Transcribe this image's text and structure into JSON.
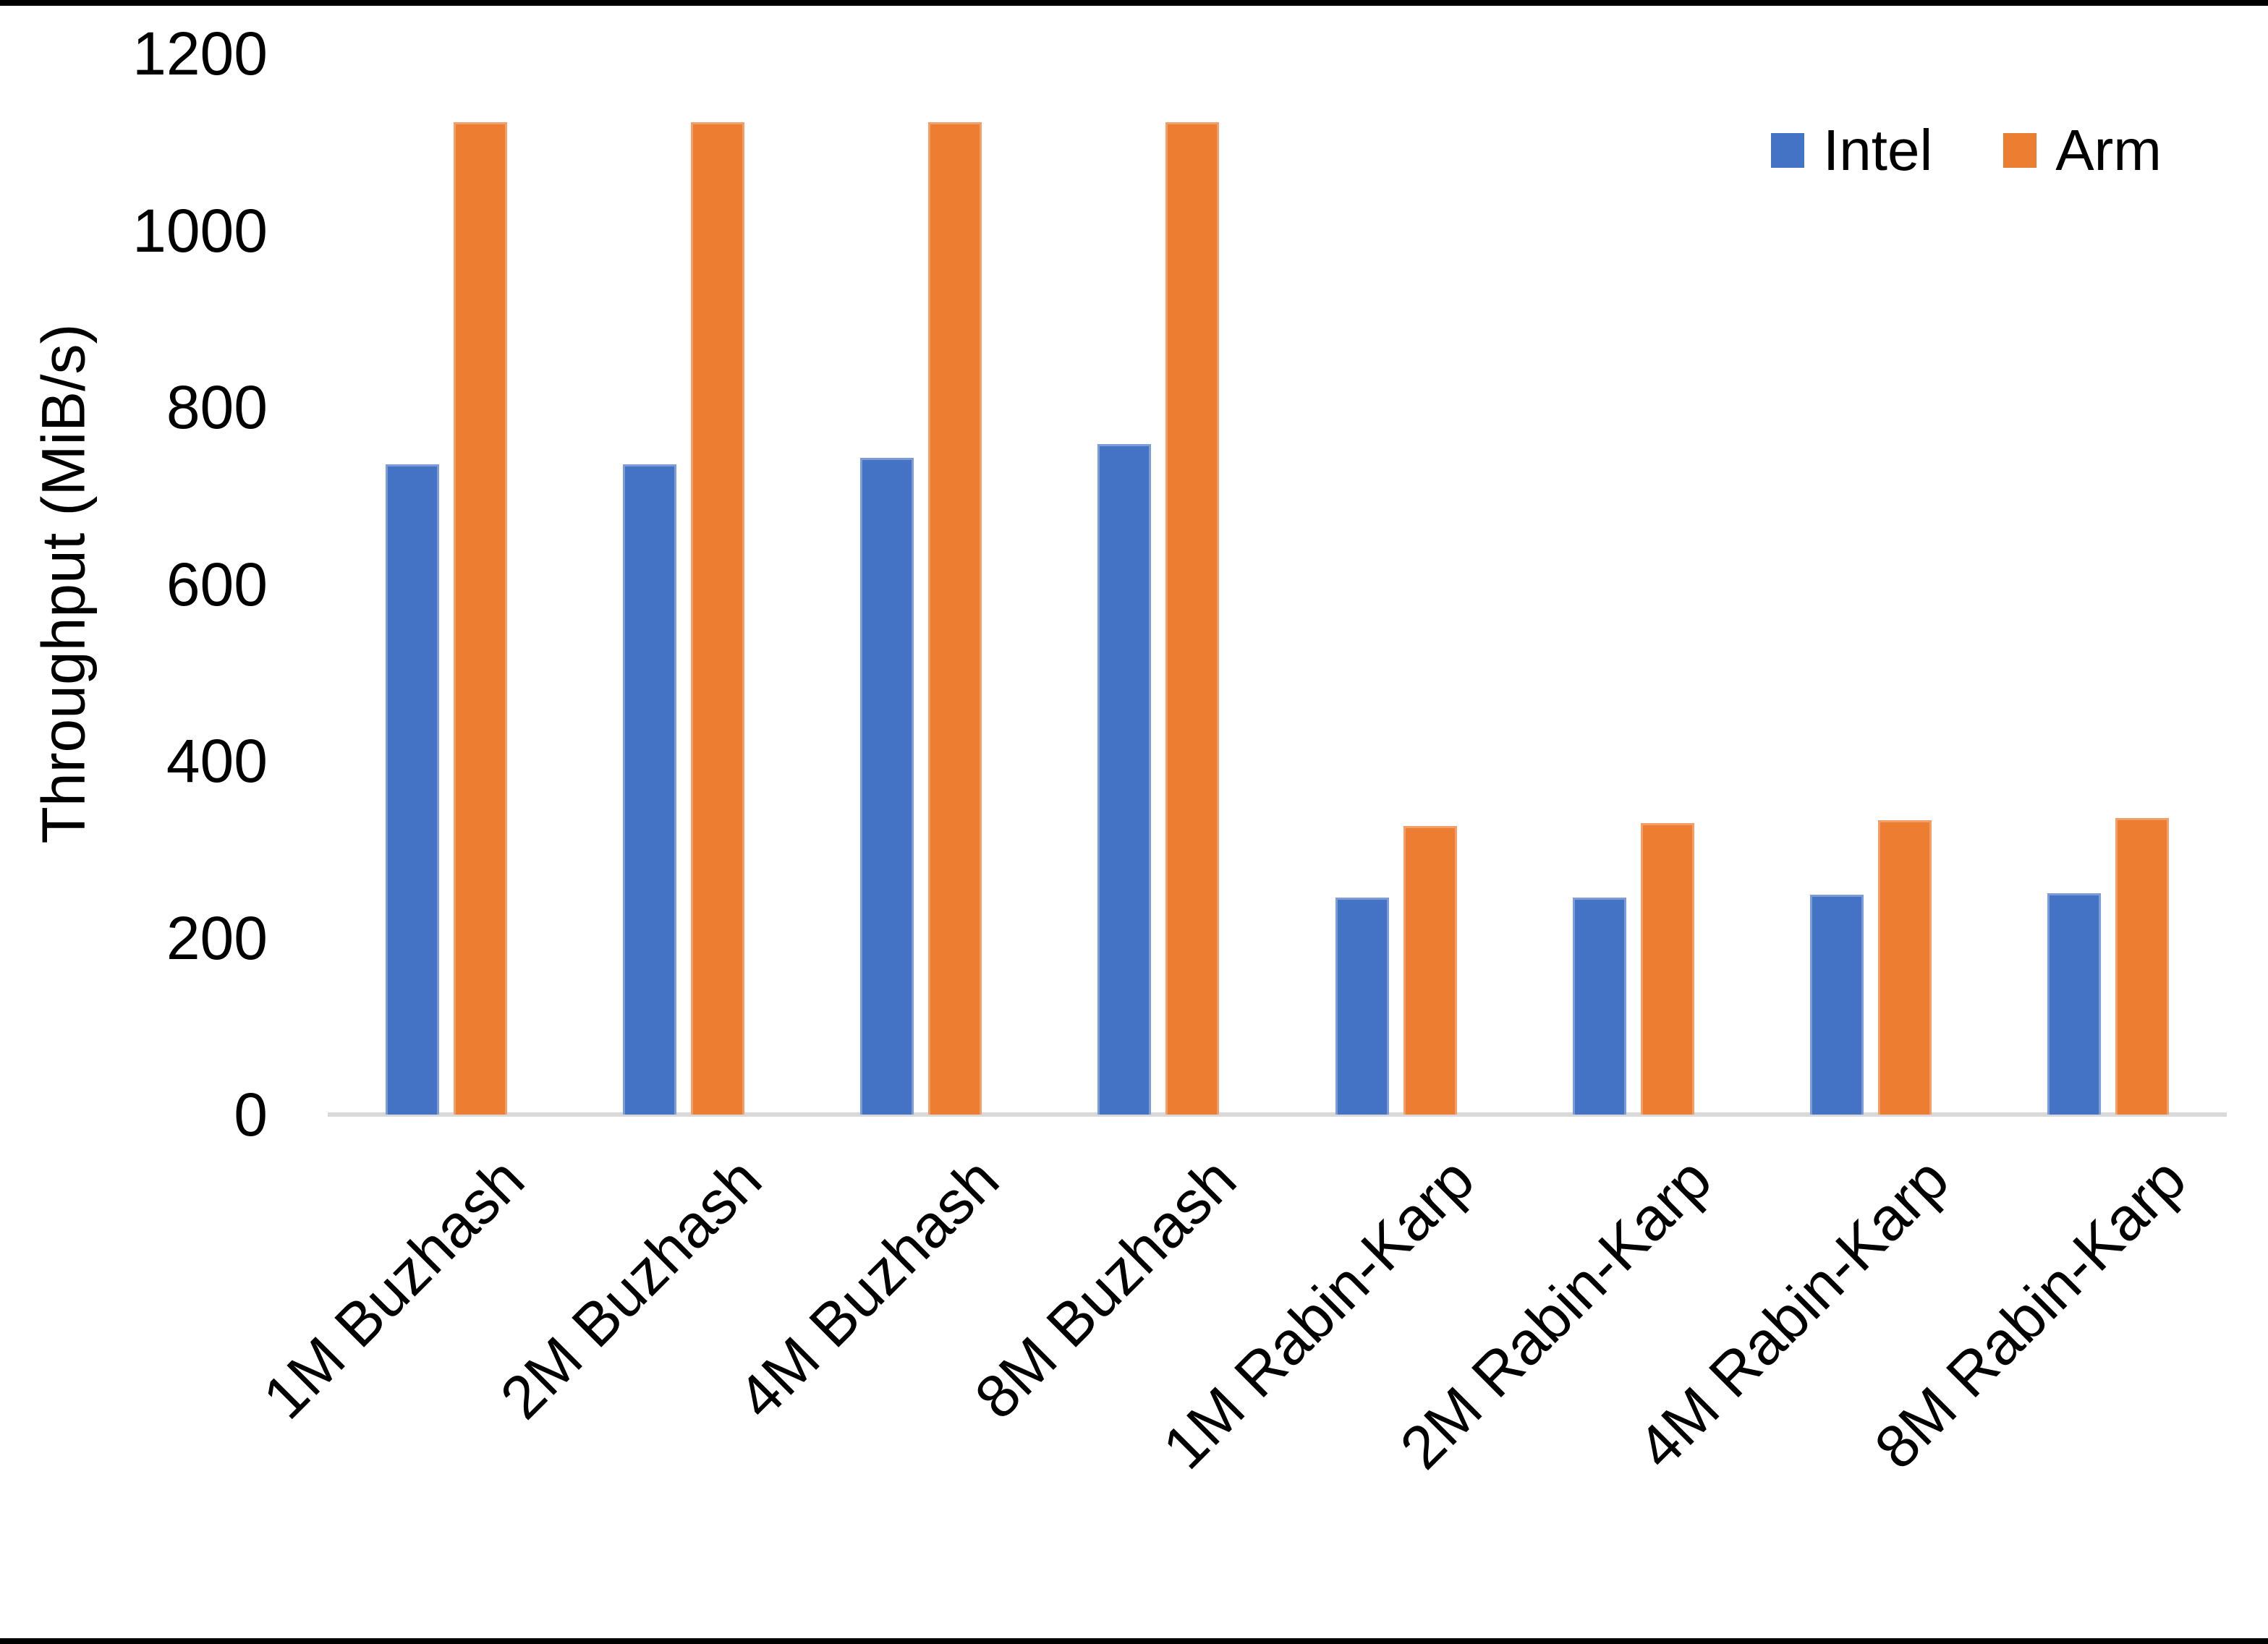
{
  "chart_data": {
    "type": "bar",
    "title": "",
    "categories": [
      "1M Buzhash",
      "2M Buzhash",
      "4M Buzhash",
      "8M Buzhash",
      "1M Rabin-Karp",
      "2M Rabin-Karp",
      "4M Rabin-Karp",
      "8M Rabin-Karp"
    ],
    "series": [
      {
        "name": "Intel",
        "color": "#4472C4",
        "edge_color": "#7C9BD9",
        "values": [
          735,
          735,
          743,
          758,
          245,
          245,
          249,
          250
        ]
      },
      {
        "name": "Arm",
        "color": "#ED7D31",
        "edge_color": "#F2A06B",
        "values": [
          1122,
          1122,
          1122,
          1122,
          326,
          330,
          333,
          335
        ]
      }
    ],
    "xlabel": "",
    "ylabel": "Throughput (MiB/s)",
    "yticks": [
      0,
      200,
      400,
      600,
      800,
      1000,
      1200
    ],
    "ylim": [
      0,
      1200
    ],
    "grid": false,
    "legend_position": "top-right",
    "axis_line_color": "#D9D9D9",
    "text_color": "#000000",
    "background_color": "#FFFFFF"
  },
  "legend": {
    "items": [
      {
        "label": "Intel",
        "color": "#4472C4"
      },
      {
        "label": "Arm",
        "color": "#ED7D31"
      }
    ]
  }
}
